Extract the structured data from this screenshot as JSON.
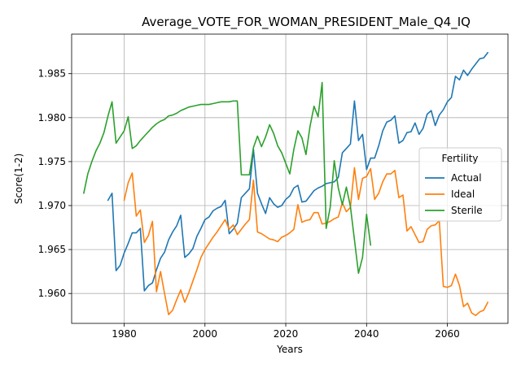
{
  "chart_data": {
    "type": "line",
    "title": "Average_VOTE_FOR_WOMAN_PRESIDENT_Male_Q4_IQ",
    "xlabel": "Years",
    "ylabel": "Score(1-2)",
    "xlim": [
      1967,
      2075
    ],
    "ylim": [
      1.9566,
      1.9895
    ],
    "xticks": [
      1980,
      2000,
      2020,
      2040,
      2060
    ],
    "yticks": [
      1.96,
      1.965,
      1.97,
      1.975,
      1.98,
      1.985
    ],
    "grid": true,
    "legend": {
      "title": "Fertility",
      "position": "center-right"
    },
    "series": [
      {
        "name": "Actual",
        "color": "#1f77b4",
        "x": [
          1976,
          1977,
          1978,
          1979,
          1980,
          1981,
          1982,
          1983,
          1984,
          1985,
          1986,
          1987,
          1988,
          1989,
          1990,
          1991,
          1992,
          1993,
          1994,
          1995,
          1996,
          1997,
          1998,
          1999,
          2000,
          2001,
          2002,
          2003,
          2004,
          2005,
          2006,
          2007,
          2008,
          2009,
          2010,
          2011,
          2012,
          2013,
          2014,
          2015,
          2016,
          2017,
          2018,
          2019,
          2020,
          2021,
          2022,
          2023,
          2024,
          2025,
          2026,
          2027,
          2028,
          2029,
          2030,
          2031,
          2032,
          2033,
          2034,
          2035,
          2036,
          2037,
          2038,
          2039,
          2040,
          2041,
          2042,
          2043,
          2044,
          2045,
          2046,
          2047,
          2048,
          2049,
          2050,
          2051,
          2052,
          2053,
          2054,
          2055,
          2056,
          2057,
          2058,
          2059,
          2060,
          2061,
          2062,
          2063,
          2064,
          2065,
          2066,
          2067,
          2068,
          2069,
          2070
        ],
        "values": [
          1.9706,
          1.9714,
          1.9626,
          1.9632,
          1.9646,
          1.9657,
          1.9669,
          1.9669,
          1.9674,
          1.9603,
          1.9609,
          1.9612,
          1.9627,
          1.964,
          1.9647,
          1.9661,
          1.967,
          1.9677,
          1.9689,
          1.9641,
          1.9645,
          1.9651,
          1.9665,
          1.9674,
          1.9684,
          1.9687,
          1.9694,
          1.9697,
          1.9699,
          1.9706,
          1.9668,
          1.9673,
          1.968,
          1.9709,
          1.9714,
          1.9719,
          1.9764,
          1.9714,
          1.9702,
          1.9691,
          1.9709,
          1.9702,
          1.9698,
          1.97,
          1.9707,
          1.9711,
          1.972,
          1.9723,
          1.9704,
          1.9705,
          1.9711,
          1.9717,
          1.972,
          1.9722,
          1.9725,
          1.9726,
          1.9727,
          1.9732,
          1.976,
          1.9765,
          1.977,
          1.9819,
          1.9774,
          1.9781,
          1.9741,
          1.9754,
          1.9754,
          1.9768,
          1.9785,
          1.9795,
          1.9797,
          1.9802,
          1.9771,
          1.9774,
          1.9783,
          1.9784,
          1.9794,
          1.9781,
          1.9788,
          1.9804,
          1.9808,
          1.9791,
          1.9803,
          1.9809,
          1.9818,
          1.9823,
          1.9847,
          1.9843,
          1.9854,
          1.9848,
          1.9855,
          1.9861,
          1.9867,
          1.9868,
          1.9874
        ]
      },
      {
        "name": "Ideal",
        "color": "#ff7f0e",
        "x": [
          1980,
          1981,
          1982,
          1983,
          1984,
          1985,
          1986,
          1987,
          1988,
          1989,
          1990,
          1991,
          1992,
          1993,
          1994,
          1995,
          1996,
          1997,
          1998,
          1999,
          2000,
          2001,
          2002,
          2003,
          2004,
          2005,
          2006,
          2007,
          2008,
          2009,
          2010,
          2011,
          2012,
          2013,
          2014,
          2015,
          2016,
          2017,
          2018,
          2019,
          2020,
          2021,
          2022,
          2023,
          2024,
          2025,
          2026,
          2027,
          2028,
          2029,
          2030,
          2031,
          2032,
          2033,
          2034,
          2035,
          2036,
          2037,
          2038,
          2039,
          2040,
          2041,
          2042,
          2043,
          2044,
          2045,
          2046,
          2047,
          2048,
          2049,
          2050,
          2051,
          2052,
          2053,
          2054,
          2055,
          2056,
          2057,
          2058,
          2059,
          2060,
          2061,
          2062,
          2063,
          2064,
          2065,
          2066,
          2067,
          2068,
          2069,
          2070
        ],
        "values": [
          1.9706,
          1.9726,
          1.9737,
          1.9688,
          1.9695,
          1.9658,
          1.9666,
          1.9682,
          1.9602,
          1.9625,
          1.96,
          1.9576,
          1.9581,
          1.9593,
          1.9604,
          1.959,
          1.9601,
          1.9614,
          1.9627,
          1.9641,
          1.965,
          1.9657,
          1.9664,
          1.967,
          1.9677,
          1.9684,
          1.9673,
          1.9678,
          1.9667,
          1.9673,
          1.9679,
          1.9684,
          1.9729,
          1.967,
          1.9668,
          1.9665,
          1.9662,
          1.9661,
          1.9659,
          1.9664,
          1.9666,
          1.9669,
          1.9673,
          1.9701,
          1.9681,
          1.9683,
          1.9684,
          1.9692,
          1.9692,
          1.9679,
          1.968,
          1.9682,
          1.9685,
          1.9687,
          1.9703,
          1.9693,
          1.9698,
          1.9743,
          1.9707,
          1.9731,
          1.9733,
          1.9742,
          1.9707,
          1.9714,
          1.9727,
          1.9736,
          1.9736,
          1.974,
          1.9709,
          1.9712,
          1.9671,
          1.9676,
          1.9667,
          1.9658,
          1.9659,
          1.9673,
          1.9677,
          1.9678,
          1.9683,
          1.9608,
          1.9607,
          1.9609,
          1.9622,
          1.9609,
          1.9585,
          1.9589,
          1.9578,
          1.9575,
          1.9579,
          1.9581,
          1.959
        ]
      },
      {
        "name": "Sterile",
        "color": "#2ca02c",
        "x": [
          1970,
          1971,
          1972,
          1973,
          1974,
          1975,
          1976,
          1977,
          1978,
          1979,
          1980,
          1981,
          1982,
          1983,
          1984,
          1985,
          1986,
          1987,
          1988,
          1989,
          1990,
          1991,
          1992,
          1993,
          1994,
          1995,
          1996,
          1997,
          1998,
          1999,
          2000,
          2001,
          2002,
          2003,
          2004,
          2005,
          2006,
          2007,
          2008,
          2009,
          2010,
          2011,
          2012,
          2013,
          2014,
          2015,
          2016,
          2017,
          2018,
          2019,
          2020,
          2021,
          2022,
          2023,
          2024,
          2025,
          2026,
          2027,
          2028,
          2029,
          2030,
          2031,
          2032,
          2033,
          2034,
          2035,
          2036,
          2037,
          2038,
          2039,
          2040,
          2041
        ],
        "values": [
          1.9714,
          1.9736,
          1.975,
          1.9762,
          1.9771,
          1.9783,
          1.9802,
          1.9818,
          1.9771,
          1.9778,
          1.9785,
          1.9801,
          1.9765,
          1.9768,
          1.9774,
          1.9779,
          1.9784,
          1.9789,
          1.9793,
          1.9796,
          1.9798,
          1.9802,
          1.9803,
          1.9805,
          1.9808,
          1.981,
          1.9812,
          1.9813,
          1.9814,
          1.9815,
          1.9815,
          1.9815,
          1.9816,
          1.9817,
          1.9818,
          1.9818,
          1.9818,
          1.9819,
          1.9819,
          1.9735,
          1.9735,
          1.9735,
          1.9766,
          1.9779,
          1.9767,
          1.9778,
          1.9792,
          1.9782,
          1.9768,
          1.976,
          1.9748,
          1.9736,
          1.9764,
          1.9785,
          1.9777,
          1.9758,
          1.979,
          1.9813,
          1.9801,
          1.984,
          1.9674,
          1.9698,
          1.9751,
          1.972,
          1.9701,
          1.9721,
          1.9699,
          1.9661,
          1.9623,
          1.9641,
          1.969,
          1.9655
        ]
      }
    ]
  }
}
